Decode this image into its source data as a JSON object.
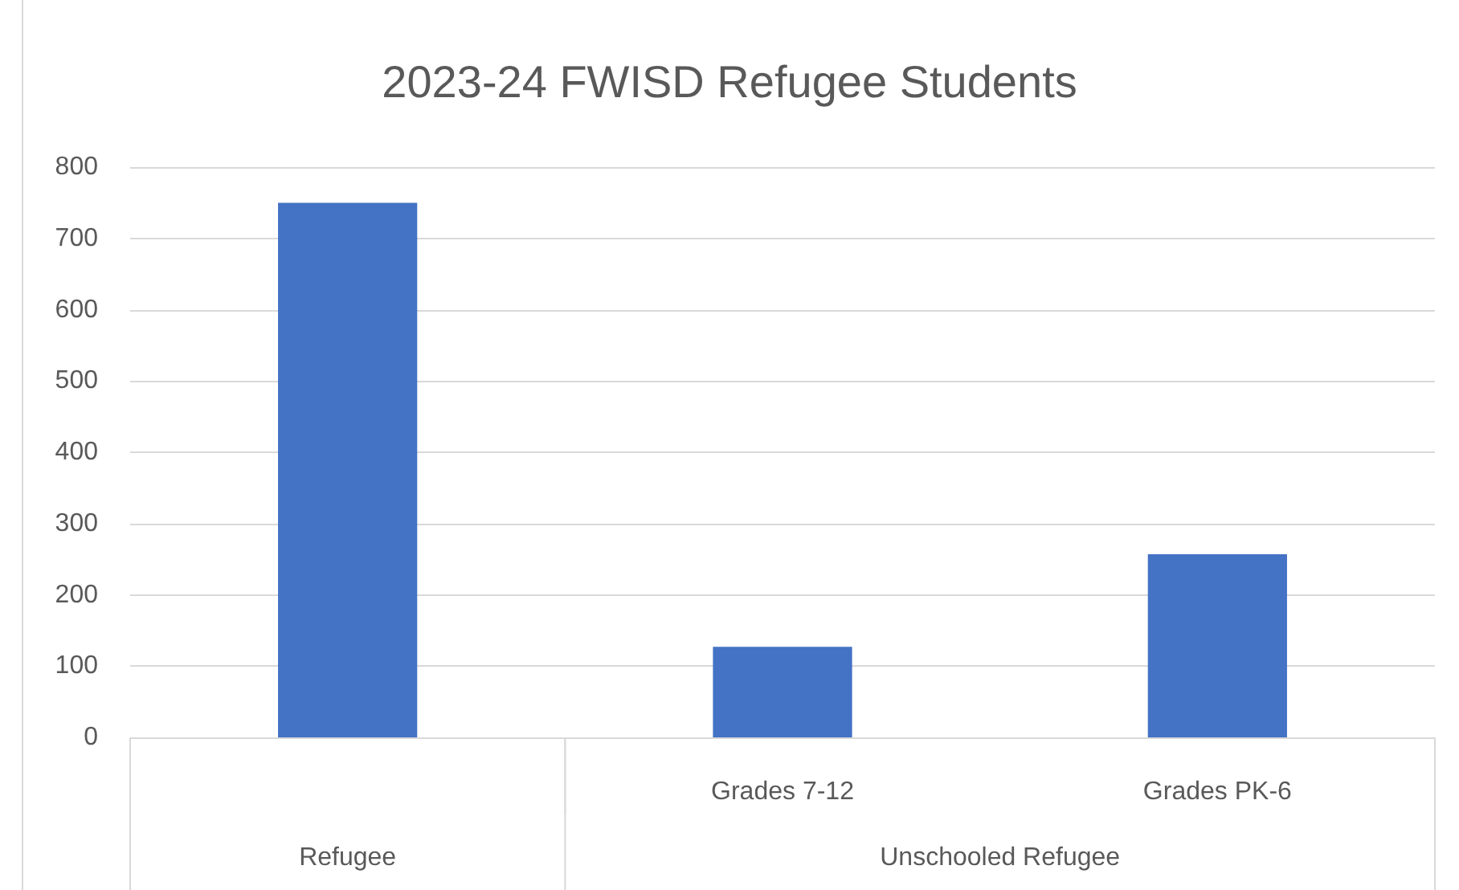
{
  "chart_data": {
    "type": "bar",
    "title": "2023-24 FWISD Refugee Students",
    "categories": [
      null,
      "Grades 7-12",
      "Grades PK-6"
    ],
    "values": [
      750,
      127,
      257
    ],
    "color": "#4472c4",
    "ylim": [
      0,
      800
    ],
    "yticks": [
      0,
      100,
      200,
      300,
      400,
      500,
      600,
      700,
      800
    ],
    "grid": "y",
    "annotations": [
      "Refugee",
      "Unschooled Refugee"
    ]
  }
}
